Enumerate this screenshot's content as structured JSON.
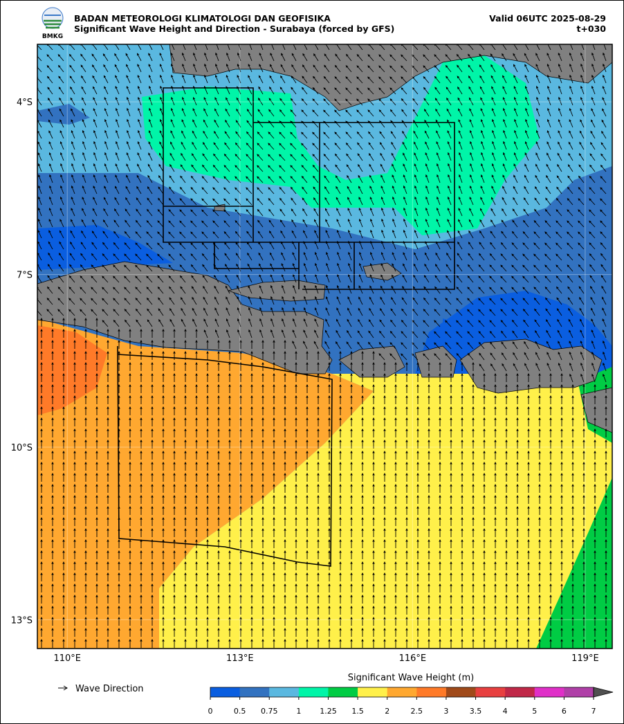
{
  "header": {
    "agency": "BADAN METEOROLOGI KLIMATOLOGI DAN GEOFISIKA",
    "title": "Significant Wave Height and Direction - Surabaya (forced by GFS)",
    "valid": "Valid 06UTC 2025-08-29",
    "lead": "t+030",
    "logo_text": "BMKG"
  },
  "map": {
    "lonlim": [
      109.48,
      119.47
    ],
    "latlim": [
      -3,
      -13.5
    ],
    "lon_ticks": [
      {
        "value": 110,
        "label": "110°E"
      },
      {
        "value": 113,
        "label": "113°E"
      },
      {
        "value": 116,
        "label": "116°E"
      },
      {
        "value": 119,
        "label": "119°E"
      }
    ],
    "lat_ticks": [
      {
        "value": -4,
        "label": "4°S"
      },
      {
        "value": -7,
        "label": "7°S"
      },
      {
        "value": -10,
        "label": "10°S"
      },
      {
        "value": -13,
        "label": "13°S"
      }
    ]
  },
  "legend": {
    "label": "Wave Direction"
  },
  "colorbar": {
    "title": "Significant Wave Height (m)",
    "ticks": [
      "0",
      "0.5",
      "0.75",
      "1",
      "1.25",
      "1.5",
      "2",
      "2.5",
      "3",
      "3.5",
      "4",
      "5",
      "6",
      "7"
    ],
    "colors": [
      "#0a5ee0",
      "#3272c0",
      "#5ab8e0",
      "#00f5a8",
      "#00cc44",
      "#fff04a",
      "#ffa830",
      "#ff7a28",
      "#a04a1a",
      "#e84040",
      "#c02848",
      "#e030c8",
      "#b040a8"
    ],
    "extend_color": "#505050"
  }
}
